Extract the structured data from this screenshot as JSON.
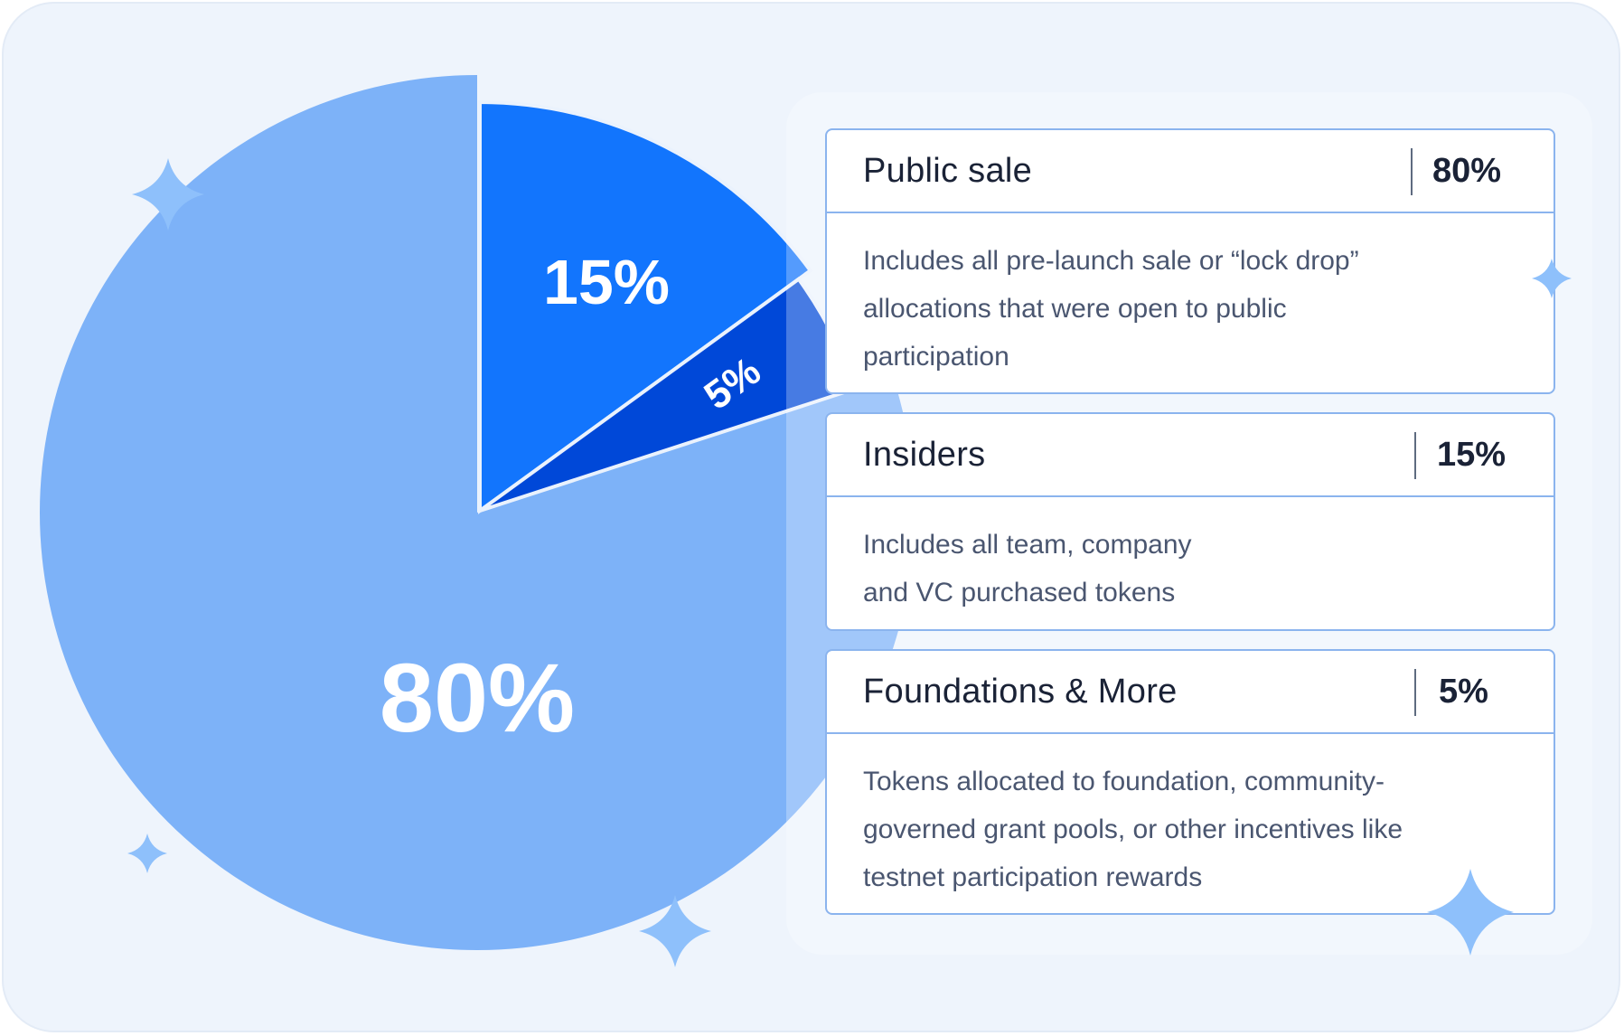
{
  "chart_data": {
    "type": "pie",
    "slices": [
      {
        "label": "80%",
        "value": 80,
        "color": "#7db2f8"
      },
      {
        "label": "15%",
        "value": 15,
        "color": "#1275fd"
      },
      {
        "label": "5%",
        "value": 5,
        "color": "#0048d8"
      }
    ]
  },
  "legend": [
    {
      "title": "Public sale",
      "value": "80%",
      "description": "Includes all pre-launch sale or “lock drop”\nallocations that were open to public\nparticipation"
    },
    {
      "title": "Insiders",
      "value": "15%",
      "description": "Includes all team, company\nand VC purchased tokens"
    },
    {
      "title": "Foundations & More",
      "value": "5%",
      "description": "Tokens allocated to foundation, community-\ngoverned grant pools, or other incentives like\ntestnet participation rewards"
    }
  ],
  "colors": {
    "background": "#eef4fc",
    "card_border": "#8bb4ee",
    "sparkle": "#8ec0fb"
  },
  "decorations": [
    "sparkle-icon",
    "sparkle-icon",
    "sparkle-icon",
    "sparkle-icon",
    "sparkle-icon"
  ]
}
